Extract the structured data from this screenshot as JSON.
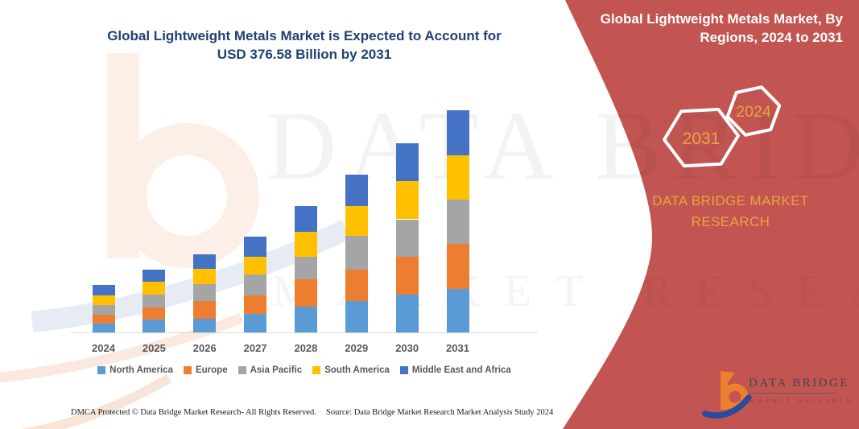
{
  "main": {
    "title": {
      "line1": "Global Lightweight Metals Market is Expected to Account for",
      "line2": "USD 376.58 Billion by 2031"
    }
  },
  "banner": {
    "title": "Global Lightweight Metals Market, By Regions, 2024 to 2031"
  },
  "badges": {
    "back_year": "2031",
    "front_year": "2024"
  },
  "brand": {
    "wordmark": "DATA BRIDGE MARKET RESEARCH"
  },
  "watermarks": {
    "row1": "DATA BRIDGE",
    "row2": "MARKET RESEARCH"
  },
  "logo": {
    "title": "DATA BRIDGE",
    "subtitle": "MARKET RESEARCH"
  },
  "footer": {
    "left": "DMCA Protected © Data Bridge Market Research-  All Rights Reserved.",
    "right": "Source: Data Bridge Market Research  Market Analysis Study 2024"
  },
  "colors": {
    "panel_red": "#C25551",
    "title_blue": "#1F4173",
    "gold": "#E9A440",
    "axis_gray": "#D9D9D9",
    "label_gray": "#595959",
    "logo_orange": "#EE7F2D",
    "logo_blue": "#2A4B9B"
  },
  "chart_data": {
    "type": "bar",
    "stacked": true,
    "title": "Global Lightweight Metals Market is Expected to Account for USD 376.58 Billion by 2031",
    "unit": "USD Billion",
    "value_axis_visible": false,
    "grid": false,
    "legend_position": "bottom",
    "categories": [
      "2024",
      "2025",
      "2026",
      "2027",
      "2028",
      "2029",
      "2030",
      "2031"
    ],
    "series": [
      {
        "name": "North America",
        "color": "#5B9BD5",
        "values": [
          15.0,
          21.8,
          23.1,
          31.3,
          43.5,
          53.0,
          63.9,
          73.4
        ]
      },
      {
        "name": "Europe",
        "color": "#ED7D31",
        "values": [
          15.0,
          20.4,
          29.9,
          31.3,
          46.2,
          53.0,
          63.9,
          76.1
        ]
      },
      {
        "name": "Asia Pacific",
        "color": "#A5A5A5",
        "values": [
          16.3,
          21.8,
          28.6,
          35.3,
          38.1,
          57.1,
          63.9,
          76.1
        ]
      },
      {
        "name": "South America",
        "color": "#FFC000",
        "values": [
          17.0,
          21.8,
          25.8,
          29.9,
          42.1,
          51.7,
          65.3,
          74.8
        ]
      },
      {
        "name": "Middle East and Africa",
        "color": "#4472C4",
        "values": [
          17.0,
          20.4,
          24.5,
          34.0,
          44.9,
          53.0,
          63.9,
          76.2
        ]
      }
    ],
    "totals_estimated": [
      80.3,
      106.2,
      131.9,
      161.8,
      214.8,
      267.8,
      320.9,
      376.58
    ],
    "highlight_total": {
      "year": "2031",
      "value_usd_billion": 376.58
    },
    "ylim": [
      0,
      400
    ]
  }
}
